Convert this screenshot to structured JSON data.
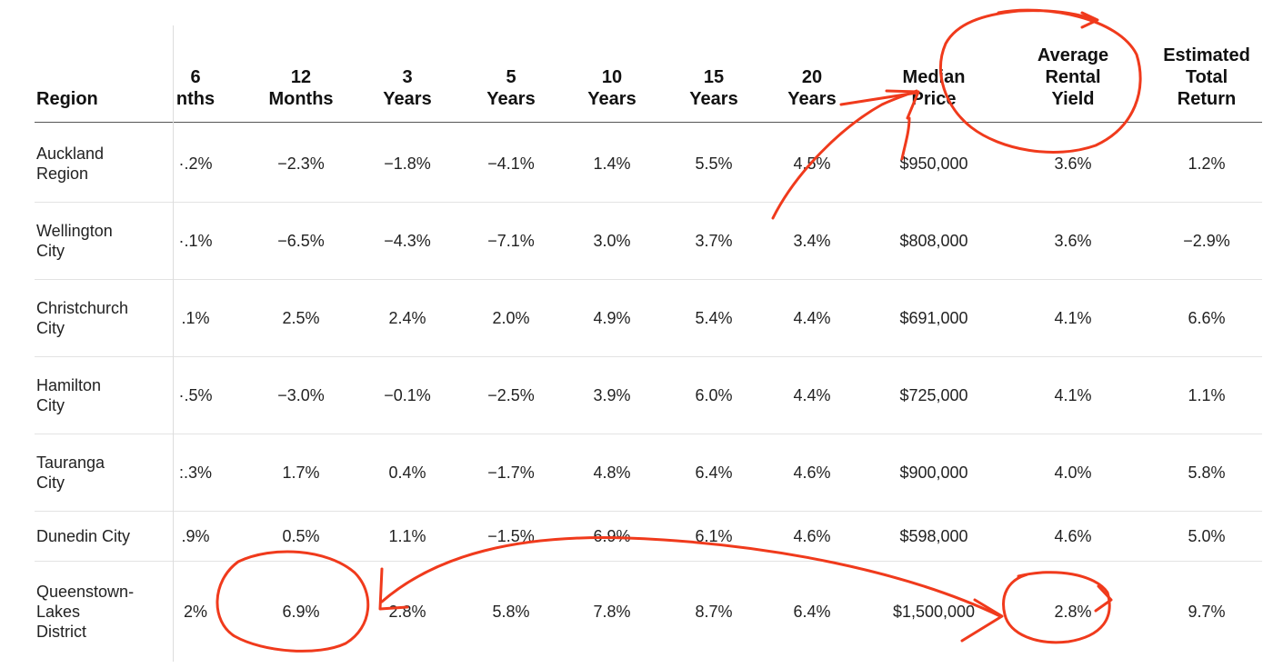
{
  "table": {
    "headers": [
      {
        "key": "region",
        "lines": [
          "Region"
        ]
      },
      {
        "key": "m6",
        "lines": [
          "6",
          "nths"
        ]
      },
      {
        "key": "m12",
        "lines": [
          "12",
          "Months"
        ]
      },
      {
        "key": "y3",
        "lines": [
          "3",
          "Years"
        ]
      },
      {
        "key": "y5",
        "lines": [
          "5",
          "Years"
        ]
      },
      {
        "key": "y10",
        "lines": [
          "10",
          "Years"
        ]
      },
      {
        "key": "y15",
        "lines": [
          "15",
          "Years"
        ]
      },
      {
        "key": "y20",
        "lines": [
          "20",
          "Years"
        ]
      },
      {
        "key": "median",
        "lines": [
          "Median",
          "Price"
        ]
      },
      {
        "key": "yield",
        "lines": [
          "Average",
          "Rental",
          "Yield"
        ]
      },
      {
        "key": "total",
        "lines": [
          "Estimated",
          "Total",
          "Return"
        ]
      }
    ],
    "rows": [
      {
        "region": [
          "Auckland",
          "Region"
        ],
        "values": [
          "·.2%",
          "−2.3%",
          "−1.8%",
          "−4.1%",
          "1.4%",
          "5.5%",
          "4.5%",
          "$950,000",
          "3.6%",
          "1.2%"
        ]
      },
      {
        "region": [
          "Wellington",
          "City"
        ],
        "values": [
          "·.1%",
          "−6.5%",
          "−4.3%",
          "−7.1%",
          "3.0%",
          "3.7%",
          "3.4%",
          "$808,000",
          "3.6%",
          "−2.9%"
        ]
      },
      {
        "region": [
          "Christchurch",
          "City"
        ],
        "values": [
          ".1%",
          "2.5%",
          "2.4%",
          "2.0%",
          "4.9%",
          "5.4%",
          "4.4%",
          "$691,000",
          "4.1%",
          "6.6%"
        ]
      },
      {
        "region": [
          "Hamilton",
          "City"
        ],
        "values": [
          "·.5%",
          "−3.0%",
          "−0.1%",
          "−2.5%",
          "3.9%",
          "6.0%",
          "4.4%",
          "$725,000",
          "4.1%",
          "1.1%"
        ]
      },
      {
        "region": [
          "Tauranga",
          "City"
        ],
        "values": [
          ":.3%",
          "1.7%",
          "0.4%",
          "−1.7%",
          "4.8%",
          "6.4%",
          "4.6%",
          "$900,000",
          "4.0%",
          "5.8%"
        ]
      },
      {
        "region": [
          "Dunedin City"
        ],
        "values": [
          ".9%",
          "0.5%",
          "1.1%",
          "−1.5%",
          "6.9%",
          "6.1%",
          "4.6%",
          "$598,000",
          "4.6%",
          "5.0%"
        ]
      },
      {
        "region": [
          "Queenstown-",
          "Lakes",
          "District"
        ],
        "values": [
          "2%",
          "6.9%",
          "2.8%",
          "5.8%",
          "7.8%",
          "8.7%",
          "6.4%",
          "$1,500,000",
          "2.8%",
          "9.7%"
        ]
      }
    ]
  },
  "annotations": {
    "stroke_color": "#f03a1c"
  }
}
